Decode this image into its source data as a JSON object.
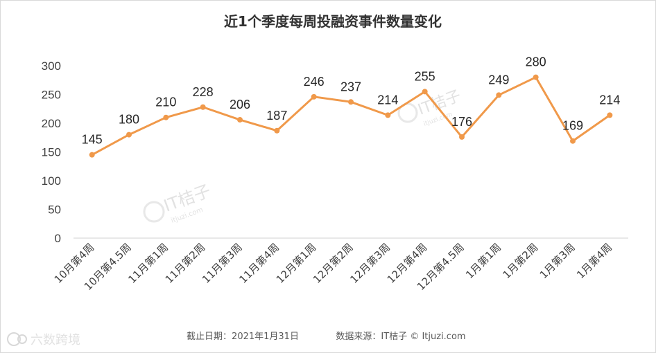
{
  "chart_data": {
    "type": "line",
    "title": "近1个季度每周投融资事件数量变化",
    "categories": [
      "10月第4周",
      "10月第4.5周",
      "11月第1周",
      "11月第2周",
      "11月第3周",
      "11月第4周",
      "12月第1周",
      "12月第2周",
      "12月第3周",
      "12月第4周",
      "12月第4.5周",
      "1月第1周",
      "1月第2周",
      "1月第3周",
      "1月第4周"
    ],
    "values": [
      145,
      180,
      210,
      228,
      206,
      187,
      246,
      237,
      214,
      255,
      176,
      249,
      280,
      169,
      214
    ],
    "ylim": [
      0,
      300
    ],
    "yticks": [
      0,
      50,
      100,
      150,
      200,
      250,
      300
    ],
    "grid": false,
    "legend": "none",
    "line_color": "#F0994A"
  },
  "footer": {
    "date_text": "截止日期：2021年1月31日",
    "source_text": "数据来源：IT桔子 © Itjuzi.com"
  },
  "watermarks": {
    "brand": "IT桔子",
    "brand_sub": "itjuzi.com",
    "corner": "六数跨境"
  }
}
